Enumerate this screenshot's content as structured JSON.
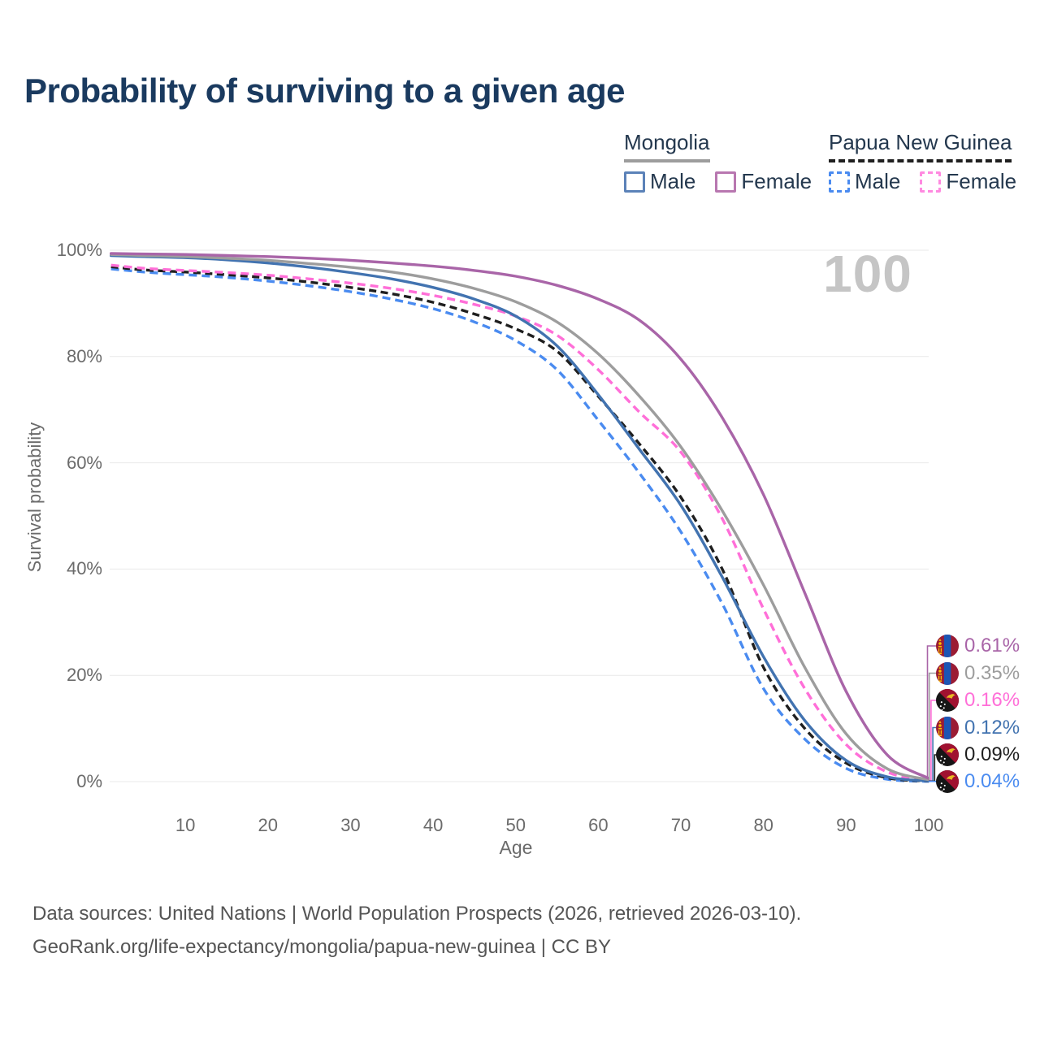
{
  "header": {
    "title": "Probability of surviving to a given age"
  },
  "legend": {
    "groups": [
      {
        "country": "Mongolia",
        "line_style": "solid",
        "underline_color": "#9d9d9d",
        "items": [
          {
            "label": "Male",
            "color": "#5b82b8"
          },
          {
            "label": "Female",
            "color": "#b877b0"
          }
        ]
      },
      {
        "country": "Papua New Guinea",
        "line_style": "dashed",
        "underline_color": "#1f1f1f",
        "items": [
          {
            "label": "Male",
            "color": "#4a8bf0"
          },
          {
            "label": "Female",
            "color": "#ff8ae0"
          }
        ]
      }
    ]
  },
  "plot": {
    "watermark": "100",
    "ylabel": "Survival probability",
    "xlabel": "Age"
  },
  "axes": {
    "y_ticks": [
      {
        "label": "100%",
        "value": 100
      },
      {
        "label": "80%",
        "value": 80
      },
      {
        "label": "60%",
        "value": 60
      },
      {
        "label": "40%",
        "value": 40
      },
      {
        "label": "20%",
        "value": 20
      },
      {
        "label": "0%",
        "value": 0
      }
    ],
    "x_ticks": [
      {
        "label": "10",
        "value": 10
      },
      {
        "label": "20",
        "value": 20
      },
      {
        "label": "30",
        "value": 30
      },
      {
        "label": "40",
        "value": 40
      },
      {
        "label": "50",
        "value": 50
      },
      {
        "label": "60",
        "value": 60
      },
      {
        "label": "70",
        "value": 70
      },
      {
        "label": "80",
        "value": 80
      },
      {
        "label": "90",
        "value": 90
      },
      {
        "label": "100",
        "value": 100
      }
    ]
  },
  "chart_data": {
    "type": "line",
    "title": "Probability of surviving to a given age",
    "xlabel": "Age",
    "ylabel": "Survival probability",
    "xlim": [
      0,
      100
    ],
    "ylim": [
      0,
      100
    ],
    "grid": "horizontal",
    "ages": [
      1,
      5,
      10,
      15,
      20,
      25,
      30,
      35,
      40,
      45,
      50,
      55,
      60,
      65,
      70,
      75,
      80,
      85,
      90,
      95,
      100
    ],
    "series": [
      {
        "name": "Papua New Guinea Male",
        "country": "Papua New Guinea",
        "sex": "Male",
        "color": "#4a8bf0",
        "dash": true,
        "end_label": "0.04%",
        "values": [
          96.5,
          95.9,
          95.4,
          94.9,
          94.2,
          93.3,
          92.2,
          90.8,
          89.0,
          86.5,
          83.0,
          77.5,
          68.0,
          58.0,
          47.0,
          33.5,
          17.5,
          8.0,
          2.5,
          0.45,
          0.04
        ]
      },
      {
        "name": "Papua New Guinea Both sexes",
        "country": "Papua New Guinea",
        "sex": "Both",
        "color": "#1f1f1f",
        "dash": true,
        "end_label": "0.09%",
        "values": [
          96.9,
          96.3,
          95.9,
          95.4,
          94.8,
          94.0,
          93.0,
          91.8,
          90.2,
          88.0,
          85.2,
          81.0,
          72.5,
          63.5,
          53.5,
          40.0,
          21.5,
          10.0,
          3.5,
          0.7,
          0.09
        ]
      },
      {
        "name": "Papua New Guinea Female",
        "country": "Papua New Guinea",
        "sex": "Female",
        "color": "#ff6fd8",
        "dash": true,
        "end_label": "0.16%",
        "values": [
          97.2,
          96.6,
          96.2,
          95.8,
          95.3,
          94.6,
          93.8,
          92.8,
          91.5,
          89.8,
          87.6,
          84.0,
          77.5,
          69.5,
          62.0,
          49.5,
          32.5,
          17.5,
          7.0,
          1.8,
          0.16
        ]
      },
      {
        "name": "Mongolia Male",
        "country": "Mongolia",
        "sex": "Male",
        "color": "#4273b0",
        "dash": false,
        "end_label": "0.12%",
        "values": [
          99.0,
          98.8,
          98.6,
          98.2,
          97.6,
          96.8,
          95.8,
          94.6,
          93.0,
          90.8,
          87.6,
          82.0,
          72.8,
          62.5,
          52.0,
          38.5,
          23.5,
          11.5,
          4.0,
          0.9,
          0.12
        ]
      },
      {
        "name": "Mongolia Both sexes",
        "country": "Mongolia",
        "sex": "Both",
        "color": "#9d9d9d",
        "dash": false,
        "end_label": "0.35%",
        "values": [
          99.2,
          99.0,
          98.8,
          98.5,
          98.1,
          97.5,
          96.8,
          95.9,
          94.6,
          92.8,
          90.3,
          86.5,
          80.5,
          72.5,
          63.0,
          51.0,
          37.0,
          21.5,
          9.0,
          2.4,
          0.35
        ]
      },
      {
        "name": "Mongolia Female",
        "country": "Mongolia",
        "sex": "Female",
        "color": "#a965a8",
        "dash": false,
        "end_label": "0.61%",
        "values": [
          99.4,
          99.3,
          99.2,
          99.0,
          98.8,
          98.5,
          98.1,
          97.6,
          97.0,
          96.2,
          95.1,
          93.4,
          90.8,
          86.8,
          79.5,
          68.5,
          54.0,
          35.5,
          17.0,
          5.0,
          0.61
        ]
      }
    ]
  },
  "end_labels": [
    {
      "value": "0.61%",
      "country": "Mongolia",
      "color": "#a965a8"
    },
    {
      "value": "0.35%",
      "country": "Mongolia",
      "color": "#9d9d9d"
    },
    {
      "value": "0.16%",
      "country": "Papua New Guinea",
      "color": "#ff6fd8"
    },
    {
      "value": "0.12%",
      "country": "Mongolia",
      "color": "#4273b0"
    },
    {
      "value": "0.09%",
      "country": "Papua New Guinea",
      "color": "#1f1f1f"
    },
    {
      "value": "0.04%",
      "country": "Papua New Guinea",
      "color": "#4a8bf0"
    }
  ],
  "footer": {
    "line1": "Data sources: United Nations | World Population Prospects (2026, retrieved 2026-03-10).",
    "line2": "GeoRank.org/life-expectancy/mongolia/papua-new-guinea | CC BY"
  }
}
